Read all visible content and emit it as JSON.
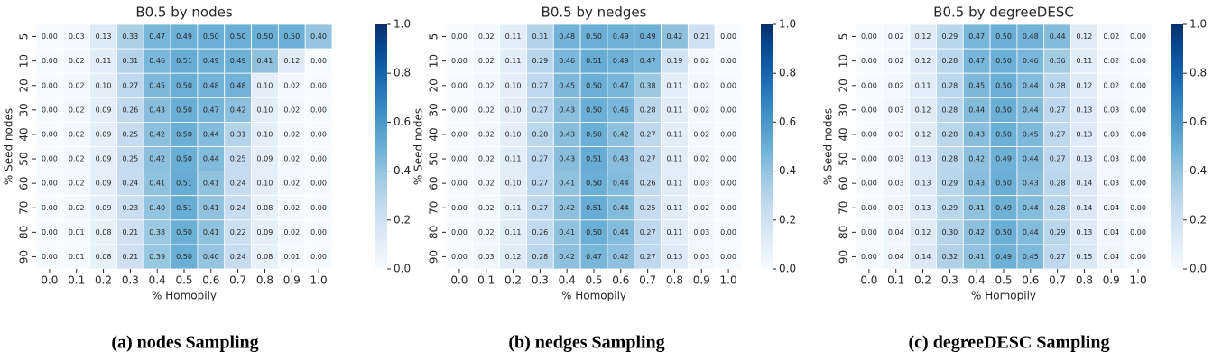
{
  "chart_data": [
    {
      "type": "heatmap",
      "title": "B0.5 by nodes",
      "caption": "(a) nodes Sampling",
      "xlabel": "% Homopily",
      "ylabel": "% Seed nodes",
      "colormap": "Blues",
      "x": [
        "0.0",
        "0.1",
        "0.2",
        "0.3",
        "0.4",
        "0.5",
        "0.6",
        "0.7",
        "0.8",
        "0.9",
        "1.0"
      ],
      "y": [
        "5",
        "10",
        "20",
        "30",
        "40",
        "50",
        "60",
        "70",
        "80",
        "90"
      ],
      "values": [
        [
          0,
          0.03,
          0.13,
          0.33,
          0.47,
          0.49,
          0.5,
          0.5,
          0.5,
          0.5,
          0.4
        ],
        [
          0,
          0.02,
          0.11,
          0.31,
          0.46,
          0.51,
          0.49,
          0.49,
          0.41,
          0.12,
          0
        ],
        [
          0,
          0.02,
          0.1,
          0.27,
          0.45,
          0.5,
          0.48,
          0.48,
          0.1,
          0.02,
          0
        ],
        [
          0,
          0.02,
          0.09,
          0.26,
          0.43,
          0.5,
          0.47,
          0.42,
          0.1,
          0.02,
          0
        ],
        [
          0,
          0.02,
          0.09,
          0.25,
          0.42,
          0.5,
          0.44,
          0.31,
          0.1,
          0.02,
          0
        ],
        [
          0,
          0.02,
          0.09,
          0.25,
          0.42,
          0.5,
          0.44,
          0.25,
          0.09,
          0.02,
          0
        ],
        [
          0,
          0.02,
          0.09,
          0.24,
          0.41,
          0.51,
          0.41,
          0.24,
          0.1,
          0.02,
          0
        ],
        [
          0,
          0.02,
          0.09,
          0.23,
          0.4,
          0.51,
          0.41,
          0.24,
          0.08,
          0.02,
          0
        ],
        [
          0,
          0.01,
          0.08,
          0.21,
          0.38,
          0.5,
          0.41,
          0.22,
          0.09,
          0.02,
          0
        ],
        [
          0,
          0.01,
          0.08,
          0.21,
          0.39,
          0.5,
          0.4,
          0.24,
          0.08,
          0.01,
          0
        ]
      ],
      "value_labels": [
        [
          "0.00",
          "0.03",
          "0.13",
          "0.33",
          "0.47",
          "0.49",
          "0.50",
          "0.50",
          "0.50",
          "0.50",
          "0.40"
        ],
        [
          "0.00",
          "0.02",
          "0.11",
          "0.31",
          "0.46",
          "0.51",
          "0.49",
          "0.49",
          "0.41",
          "0.12",
          "0.00"
        ],
        [
          "0.00",
          "0.02",
          "0.10",
          "0.27",
          "0.45",
          "0.50",
          "0.48",
          "0.48",
          "0.10",
          "0.02",
          "0.00"
        ],
        [
          "0.00",
          "0.02",
          "0.09",
          "0.26",
          "0.43",
          "0.50",
          "0.47",
          "0.42",
          "0.10",
          "0.02",
          "0.00"
        ],
        [
          "0.00",
          "0.02",
          "0.09",
          "0.25",
          "0.42",
          "0.50",
          "0.44",
          "0.31",
          "0.10",
          "0.02",
          "0.00"
        ],
        [
          "0.00",
          "0.02",
          "0.09",
          "0.25",
          "0.42",
          "0.50",
          "0.44",
          "0.25",
          "0.09",
          "0.02",
          "0.00"
        ],
        [
          "0.00",
          "0.02",
          "0.09",
          "0.24",
          "0.41",
          "0.51",
          "0.41",
          "0.24",
          "0.10",
          "0.02",
          "0.00"
        ],
        [
          "0.00",
          "0.02",
          "0.09",
          "0.23",
          "0.40",
          "0.51",
          "0.41",
          "0.24",
          "0.08",
          "0.02",
          "0.00"
        ],
        [
          "0.00",
          "0.01",
          "0.08",
          "0.21",
          "0.38",
          "0.50",
          "0.41",
          "0.22",
          "0.09",
          "0.02",
          "0.00"
        ],
        [
          "0.00",
          "0.01",
          "0.08",
          "0.21",
          "0.39",
          "0.50",
          "0.40",
          "0.24",
          "0.08",
          "0.01",
          "0.00"
        ]
      ],
      "zlim": [
        0,
        1
      ],
      "zticks": [
        {
          "value": 0,
          "label": "0.0"
        },
        0.2,
        0.4,
        0.6,
        0.8,
        {
          "value": 1,
          "label": "1.0"
        }
      ]
    },
    {
      "type": "heatmap",
      "title": "B0.5 by nedges",
      "caption": "(b) nedges Sampling",
      "xlabel": "% Homopily",
      "ylabel": "% Seed nodes",
      "colormap": "Blues",
      "x": [
        "0.0",
        "0.1",
        "0.2",
        "0.3",
        "0.4",
        "0.5",
        "0.6",
        "0.7",
        "0.8",
        "0.9",
        "1.0"
      ],
      "y": [
        "5",
        "10",
        "20",
        "30",
        "40",
        "50",
        "60",
        "70",
        "80",
        "90"
      ],
      "values": [
        [
          0,
          0.02,
          0.11,
          0.31,
          0.48,
          0.5,
          0.49,
          0.49,
          0.42,
          0.21,
          0
        ],
        [
          0,
          0.02,
          0.11,
          0.29,
          0.46,
          0.51,
          0.49,
          0.47,
          0.19,
          0.02,
          0
        ],
        [
          0,
          0.02,
          0.1,
          0.27,
          0.45,
          0.5,
          0.47,
          0.38,
          0.11,
          0.02,
          0
        ],
        [
          0,
          0.02,
          0.1,
          0.27,
          0.43,
          0.5,
          0.46,
          0.28,
          0.11,
          0.02,
          0
        ],
        [
          0,
          0.02,
          0.1,
          0.28,
          0.43,
          0.5,
          0.42,
          0.27,
          0.11,
          0.02,
          0
        ],
        [
          0,
          0.02,
          0.11,
          0.27,
          0.43,
          0.51,
          0.43,
          0.27,
          0.11,
          0.02,
          0
        ],
        [
          0,
          0.02,
          0.1,
          0.27,
          0.41,
          0.5,
          0.44,
          0.26,
          0.11,
          0.03,
          0
        ],
        [
          0,
          0.02,
          0.11,
          0.27,
          0.42,
          0.51,
          0.44,
          0.25,
          0.11,
          0.02,
          0
        ],
        [
          0,
          0.02,
          0.11,
          0.26,
          0.41,
          0.5,
          0.44,
          0.27,
          0.11,
          0.03,
          0
        ],
        [
          0,
          0.03,
          0.12,
          0.28,
          0.42,
          0.47,
          0.42,
          0.27,
          0.13,
          0.03,
          0
        ]
      ],
      "value_labels": [
        [
          "0.00",
          "0.02",
          "0.11",
          "0.31",
          "0.48",
          "0.50",
          "0.49",
          "0.49",
          "0.42",
          "0.21",
          "0.00"
        ],
        [
          "0.00",
          "0.02",
          "0.11",
          "0.29",
          "0.46",
          "0.51",
          "0.49",
          "0.47",
          "0.19",
          "0.02",
          "0.00"
        ],
        [
          "0.00",
          "0.02",
          "0.10",
          "0.27",
          "0.45",
          "0.50",
          "0.47",
          "0.38",
          "0.11",
          "0.02",
          "0.00"
        ],
        [
          "0.00",
          "0.02",
          "0.10",
          "0.27",
          "0.43",
          "0.50",
          "0.46",
          "0.28",
          "0.11",
          "0.02",
          "0.00"
        ],
        [
          "0.00",
          "0.02",
          "0.10",
          "0.28",
          "0.43",
          "0.50",
          "0.42",
          "0.27",
          "0.11",
          "0.02",
          "0.00"
        ],
        [
          "0.00",
          "0.02",
          "0.11",
          "0.27",
          "0.43",
          "0.51",
          "0.43",
          "0.27",
          "0.11",
          "0.02",
          "0.00"
        ],
        [
          "0.00",
          "0.02",
          "0.10",
          "0.27",
          "0.41",
          "0.50",
          "0.44",
          "0.26",
          "0.11",
          "0.03",
          "0.00"
        ],
        [
          "0.00",
          "0.02",
          "0.11",
          "0.27",
          "0.42",
          "0.51",
          "0.44",
          "0.25",
          "0.11",
          "0.02",
          "0.00"
        ],
        [
          "0.00",
          "0.02",
          "0.11",
          "0.26",
          "0.41",
          "0.50",
          "0.44",
          "0.27",
          "0.11",
          "0.03",
          "0.00"
        ],
        [
          "0.00",
          "0.03",
          "0.12",
          "0.28",
          "0.42",
          "0.47",
          "0.42",
          "0.27",
          "0.13",
          "0.03",
          "0.00"
        ]
      ],
      "zlim": [
        0,
        1
      ],
      "zticks": [
        {
          "value": 0,
          "label": "0.0"
        },
        0.2,
        0.4,
        0.6,
        0.8,
        {
          "value": 1,
          "label": "1.0"
        }
      ]
    },
    {
      "type": "heatmap",
      "title": "B0.5 by degreeDESC",
      "caption": "(c) degreeDESC Sampling",
      "xlabel": "% Homopily",
      "ylabel": "% Seed nodes",
      "colormap": "Blues",
      "x": [
        "0.0",
        "0.1",
        "0.2",
        "0.3",
        "0.4",
        "0.5",
        "0.6",
        "0.7",
        "0.8",
        "0.9",
        "1.0"
      ],
      "y": [
        "5",
        "10",
        "20",
        "30",
        "40",
        "50",
        "60",
        "70",
        "80",
        "90"
      ],
      "values": [
        [
          0,
          0.02,
          0.12,
          0.29,
          0.47,
          0.5,
          0.48,
          0.44,
          0.12,
          0.02,
          0
        ],
        [
          0,
          0.02,
          0.12,
          0.28,
          0.47,
          0.5,
          0.46,
          0.36,
          0.11,
          0.02,
          0
        ],
        [
          0,
          0.02,
          0.11,
          0.28,
          0.45,
          0.5,
          0.44,
          0.28,
          0.12,
          0.02,
          0
        ],
        [
          0,
          0.03,
          0.12,
          0.28,
          0.44,
          0.5,
          0.44,
          0.27,
          0.13,
          0.03,
          0
        ],
        [
          0,
          0.03,
          0.12,
          0.28,
          0.43,
          0.5,
          0.45,
          0.27,
          0.13,
          0.03,
          0
        ],
        [
          0,
          0.03,
          0.13,
          0.28,
          0.42,
          0.49,
          0.44,
          0.27,
          0.13,
          0.03,
          0
        ],
        [
          0,
          0.03,
          0.13,
          0.29,
          0.43,
          0.5,
          0.43,
          0.28,
          0.14,
          0.03,
          0
        ],
        [
          0,
          0.03,
          0.13,
          0.29,
          0.41,
          0.49,
          0.44,
          0.28,
          0.14,
          0.04,
          0
        ],
        [
          0,
          0.04,
          0.12,
          0.3,
          0.42,
          0.5,
          0.44,
          0.29,
          0.13,
          0.04,
          0
        ],
        [
          0,
          0.04,
          0.14,
          0.32,
          0.41,
          0.49,
          0.45,
          0.27,
          0.15,
          0.04,
          0
        ]
      ],
      "value_labels": [
        [
          "0.00",
          "0.02",
          "0.12",
          "0.29",
          "0.47",
          "0.50",
          "0.48",
          "0.44",
          "0.12",
          "0.02",
          "0.00"
        ],
        [
          "0.00",
          "0.02",
          "0.12",
          "0.28",
          "0.47",
          "0.50",
          "0.46",
          "0.36",
          "0.11",
          "0.02",
          "0.00"
        ],
        [
          "0.00",
          "0.02",
          "0.11",
          "0.28",
          "0.45",
          "0.50",
          "0.44",
          "0.28",
          "0.12",
          "0.02",
          "0.00"
        ],
        [
          "0.00",
          "0.03",
          "0.12",
          "0.28",
          "0.44",
          "0.50",
          "0.44",
          "0.27",
          "0.13",
          "0.03",
          "0.00"
        ],
        [
          "0.00",
          "0.03",
          "0.12",
          "0.28",
          "0.43",
          "0.50",
          "0.45",
          "0.27",
          "0.13",
          "0.03",
          "0.00"
        ],
        [
          "0.00",
          "0.03",
          "0.13",
          "0.28",
          "0.42",
          "0.49",
          "0.44",
          "0.27",
          "0.13",
          "0.03",
          "0.00"
        ],
        [
          "0.00",
          "0.03",
          "0.13",
          "0.29",
          "0.43",
          "0.50",
          "0.43",
          "0.28",
          "0.14",
          "0.03",
          "0.00"
        ],
        [
          "0.00",
          "0.03",
          "0.13",
          "0.29",
          "0.41",
          "0.49",
          "0.44",
          "0.28",
          "0.14",
          "0.04",
          "0.00"
        ],
        [
          "0.00",
          "0.04",
          "0.12",
          "0.30",
          "0.42",
          "0.50",
          "0.44",
          "0.29",
          "0.13",
          "0.04",
          "0.00"
        ],
        [
          "0.00",
          "0.04",
          "0.14",
          "0.32",
          "0.41",
          "0.49",
          "0.45",
          "0.27",
          "0.15",
          "0.04",
          "0.00"
        ]
      ],
      "zlim": [
        0,
        1
      ],
      "zticks": [
        {
          "value": 0,
          "label": "0.0"
        },
        0.2,
        0.4,
        0.6,
        0.8,
        {
          "value": 1,
          "label": "1.0"
        }
      ]
    }
  ]
}
